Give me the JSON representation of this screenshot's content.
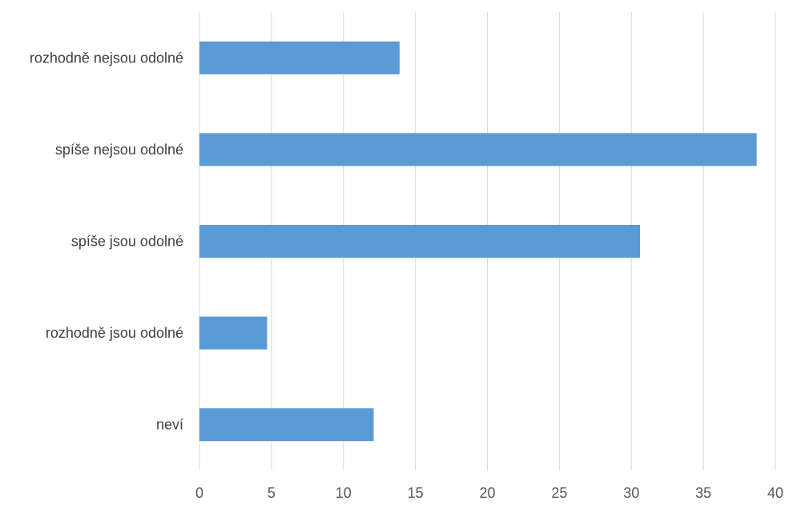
{
  "chart_data": {
    "type": "bar",
    "orientation": "horizontal",
    "categories": [
      "rozhodně nejsou odolné",
      "spíše nejsou odolné",
      "spíše jsou odolné",
      "rozhodně jsou odolné",
      "neví"
    ],
    "values": [
      13.9,
      38.7,
      30.6,
      4.7,
      12.1
    ],
    "xlim": [
      0,
      40
    ],
    "xticks": [
      0,
      5,
      10,
      15,
      20,
      25,
      30,
      35,
      40
    ],
    "grid": "vertical",
    "legend": "none",
    "bar_color": "#5b9bd5"
  }
}
